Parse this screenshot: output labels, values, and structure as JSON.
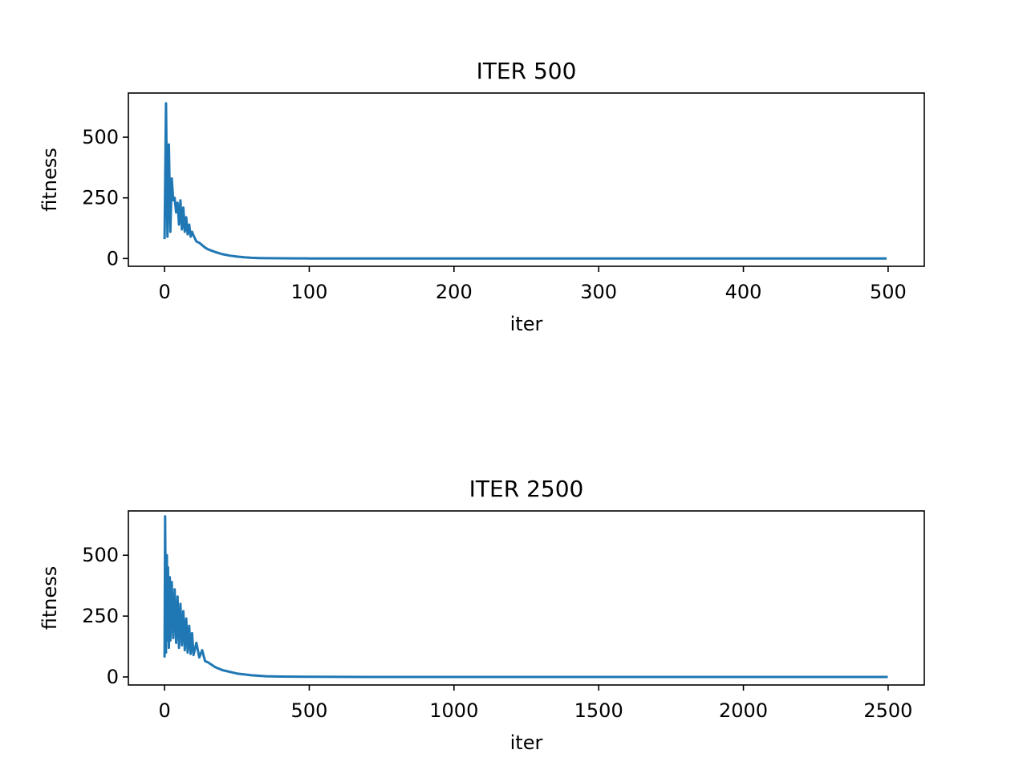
{
  "chart_data": [
    {
      "type": "line",
      "title": "ITER 500",
      "xlabel": "iter",
      "ylabel": "fitness",
      "xlim": [
        -25,
        525
      ],
      "ylim": [
        -32,
        682
      ],
      "xticks": [
        0,
        100,
        200,
        300,
        400,
        500
      ],
      "xtick_labels": [
        "0",
        "100",
        "200",
        "300",
        "400",
        "500"
      ],
      "yticks": [
        0,
        250,
        500
      ],
      "ytick_labels": [
        "0",
        "250",
        "500"
      ],
      "grid": false,
      "color": "#1f77b4",
      "series": [
        {
          "x": [
            0,
            1,
            2,
            3,
            4,
            5,
            6,
            7,
            8,
            9,
            10,
            11,
            12,
            13,
            14,
            15,
            16,
            17,
            18,
            19,
            20,
            22,
            24,
            26,
            28,
            30,
            35,
            40,
            45,
            50,
            55,
            60,
            65,
            70,
            80,
            90,
            100,
            150,
            200,
            250,
            300,
            350,
            400,
            450,
            499
          ],
          "y": [
            80,
            640,
            90,
            470,
            110,
            330,
            240,
            250,
            190,
            230,
            140,
            240,
            120,
            210,
            110,
            170,
            100,
            140,
            90,
            110,
            95,
            70,
            65,
            55,
            45,
            38,
            27,
            18,
            12,
            8,
            5,
            3,
            2,
            1.5,
            1,
            0.6,
            0.4,
            0.2,
            0.1,
            0.05,
            0,
            0,
            0,
            0,
            0
          ]
        }
      ]
    },
    {
      "type": "line",
      "title": "ITER 2500",
      "xlabel": "iter",
      "ylabel": "fitness",
      "xlim": [
        -125,
        2625
      ],
      "ylim": [
        -33,
        682
      ],
      "xticks": [
        0,
        500,
        1000,
        1500,
        2000,
        2500
      ],
      "xtick_labels": [
        "0",
        "500",
        "1000",
        "1500",
        "2000",
        "2500"
      ],
      "yticks": [
        0,
        250,
        500
      ],
      "ytick_labels": [
        "0",
        "250",
        "500"
      ],
      "grid": false,
      "color": "#1f77b4",
      "series": [
        {
          "x": [
            0,
            2,
            5,
            8,
            10,
            12,
            15,
            18,
            20,
            25,
            30,
            35,
            40,
            45,
            50,
            55,
            60,
            65,
            70,
            75,
            80,
            85,
            90,
            95,
            100,
            110,
            120,
            130,
            140,
            150,
            175,
            200,
            250,
            300,
            350,
            400,
            500,
            700,
            1000,
            1500,
            2000,
            2499
          ],
          "y": [
            80,
            660,
            100,
            500,
            150,
            450,
            120,
            410,
            150,
            390,
            160,
            360,
            140,
            330,
            120,
            300,
            130,
            270,
            110,
            240,
            100,
            210,
            95,
            180,
            90,
            140,
            80,
            110,
            65,
            60,
            40,
            28,
            14,
            7,
            3,
            1.5,
            0.5,
            0.1,
            0,
            0,
            0,
            0
          ]
        }
      ]
    }
  ]
}
